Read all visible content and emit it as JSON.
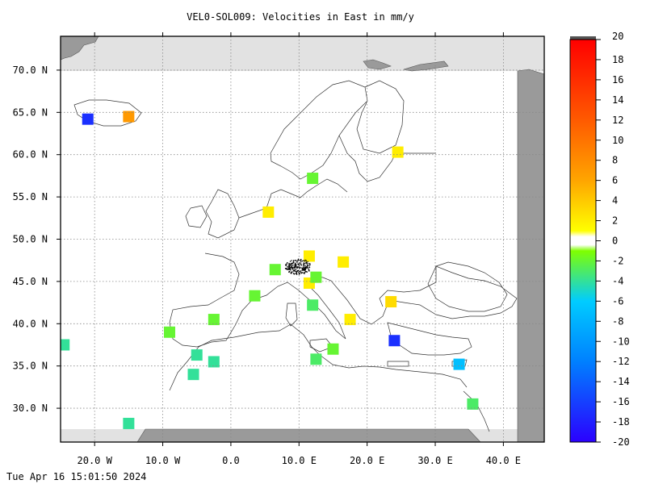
{
  "title": "VEL0-SOL009: Velocities in East in mm/y",
  "timestamp": "Tue Apr 16 15:01:50 2024",
  "lat_ticks": [
    {
      "value": 70,
      "label": "70.0 N"
    },
    {
      "value": 65,
      "label": "65.0 N"
    },
    {
      "value": 60,
      "label": "60.0 N"
    },
    {
      "value": 55,
      "label": "55.0 N"
    },
    {
      "value": 50,
      "label": "50.0 N"
    },
    {
      "value": 45,
      "label": "45.0 N"
    },
    {
      "value": 40,
      "label": "40.0 N"
    },
    {
      "value": 35,
      "label": "35.0 N"
    },
    {
      "value": 30,
      "label": "30.0 N"
    }
  ],
  "lon_ticks": [
    {
      "value": -20,
      "label": "20.0 W"
    },
    {
      "value": -10,
      "label": "10.0 W"
    },
    {
      "value": 0,
      "label": "0.0"
    },
    {
      "value": 10,
      "label": "10.0 E"
    },
    {
      "value": 20,
      "label": "20.0 E"
    },
    {
      "value": 30,
      "label": "30.0 E"
    },
    {
      "value": 40,
      "label": "40.0 E"
    }
  ],
  "colorbar": {
    "min": -20,
    "max": 20,
    "ticks": [
      20,
      18,
      16,
      14,
      12,
      10,
      8,
      6,
      4,
      2,
      0,
      -2,
      -4,
      -6,
      -8,
      -10,
      -12,
      -14,
      -16,
      -18,
      -20
    ],
    "stops": [
      {
        "v": 20,
        "c": "#ff0000"
      },
      {
        "v": 12,
        "c": "#ff5a00"
      },
      {
        "v": 6,
        "c": "#ffa500"
      },
      {
        "v": 1,
        "c": "#ffff00"
      },
      {
        "v": 0.4,
        "c": "#ffffff"
      },
      {
        "v": -0.4,
        "c": "#ffffff"
      },
      {
        "v": -1,
        "c": "#7fff00"
      },
      {
        "v": -6,
        "c": "#00ccff"
      },
      {
        "v": -12,
        "c": "#0080ff"
      },
      {
        "v": -20,
        "c": "#2b00ff"
      }
    ]
  },
  "colors": {
    "no_data_dark": "#9a9a9a",
    "no_data_light": "#e2e2e2",
    "coast": "#333333",
    "grid": "#888888"
  },
  "chart_data": {
    "type": "heatmap",
    "title": "VEL0-SOL009: Velocities in East in mm/y",
    "x_range": [
      -25,
      46
    ],
    "y_range": [
      26,
      74
    ],
    "units": "mm/y",
    "cells": [
      {
        "lon": -21,
        "lat": 64.2,
        "v": -17
      },
      {
        "lon": -15,
        "lat": 64.5,
        "v": 7
      },
      {
        "lon": -24.5,
        "lat": 37.5,
        "v": -4
      },
      {
        "lon": -9,
        "lat": 39,
        "v": -2
      },
      {
        "lon": -5,
        "lat": 36.3,
        "v": -4
      },
      {
        "lon": -5.5,
        "lat": 34,
        "v": -4
      },
      {
        "lon": -2.5,
        "lat": 35.5,
        "v": -4
      },
      {
        "lon": -2.5,
        "lat": 40.5,
        "v": -2
      },
      {
        "lon": -15,
        "lat": 28.2,
        "v": -4
      },
      {
        "lon": 3.5,
        "lat": 43.3,
        "v": -2
      },
      {
        "lon": 6.5,
        "lat": 46.4,
        "v": -2
      },
      {
        "lon": 11.5,
        "lat": 48,
        "v": 2
      },
      {
        "lon": 11.5,
        "lat": 44.8,
        "v": 2
      },
      {
        "lon": 12.5,
        "lat": 45.5,
        "v": -2
      },
      {
        "lon": 16.5,
        "lat": 47.3,
        "v": 2
      },
      {
        "lon": 12,
        "lat": 42.2,
        "v": -3
      },
      {
        "lon": 17.5,
        "lat": 40.5,
        "v": 2
      },
      {
        "lon": 15,
        "lat": 37,
        "v": -2
      },
      {
        "lon": 12.5,
        "lat": 35.8,
        "v": -3
      },
      {
        "lon": 23.5,
        "lat": 42.6,
        "v": 3
      },
      {
        "lon": 24,
        "lat": 38,
        "v": -17
      },
      {
        "lon": 33.5,
        "lat": 35.2,
        "v": -7
      },
      {
        "lon": 35.5,
        "lat": 30.5,
        "v": -3
      },
      {
        "lon": 5.5,
        "lat": 53.2,
        "v": 2
      },
      {
        "lon": 12,
        "lat": 57.2,
        "v": -2
      },
      {
        "lon": 24.5,
        "lat": 60.3,
        "v": 2
      }
    ]
  }
}
